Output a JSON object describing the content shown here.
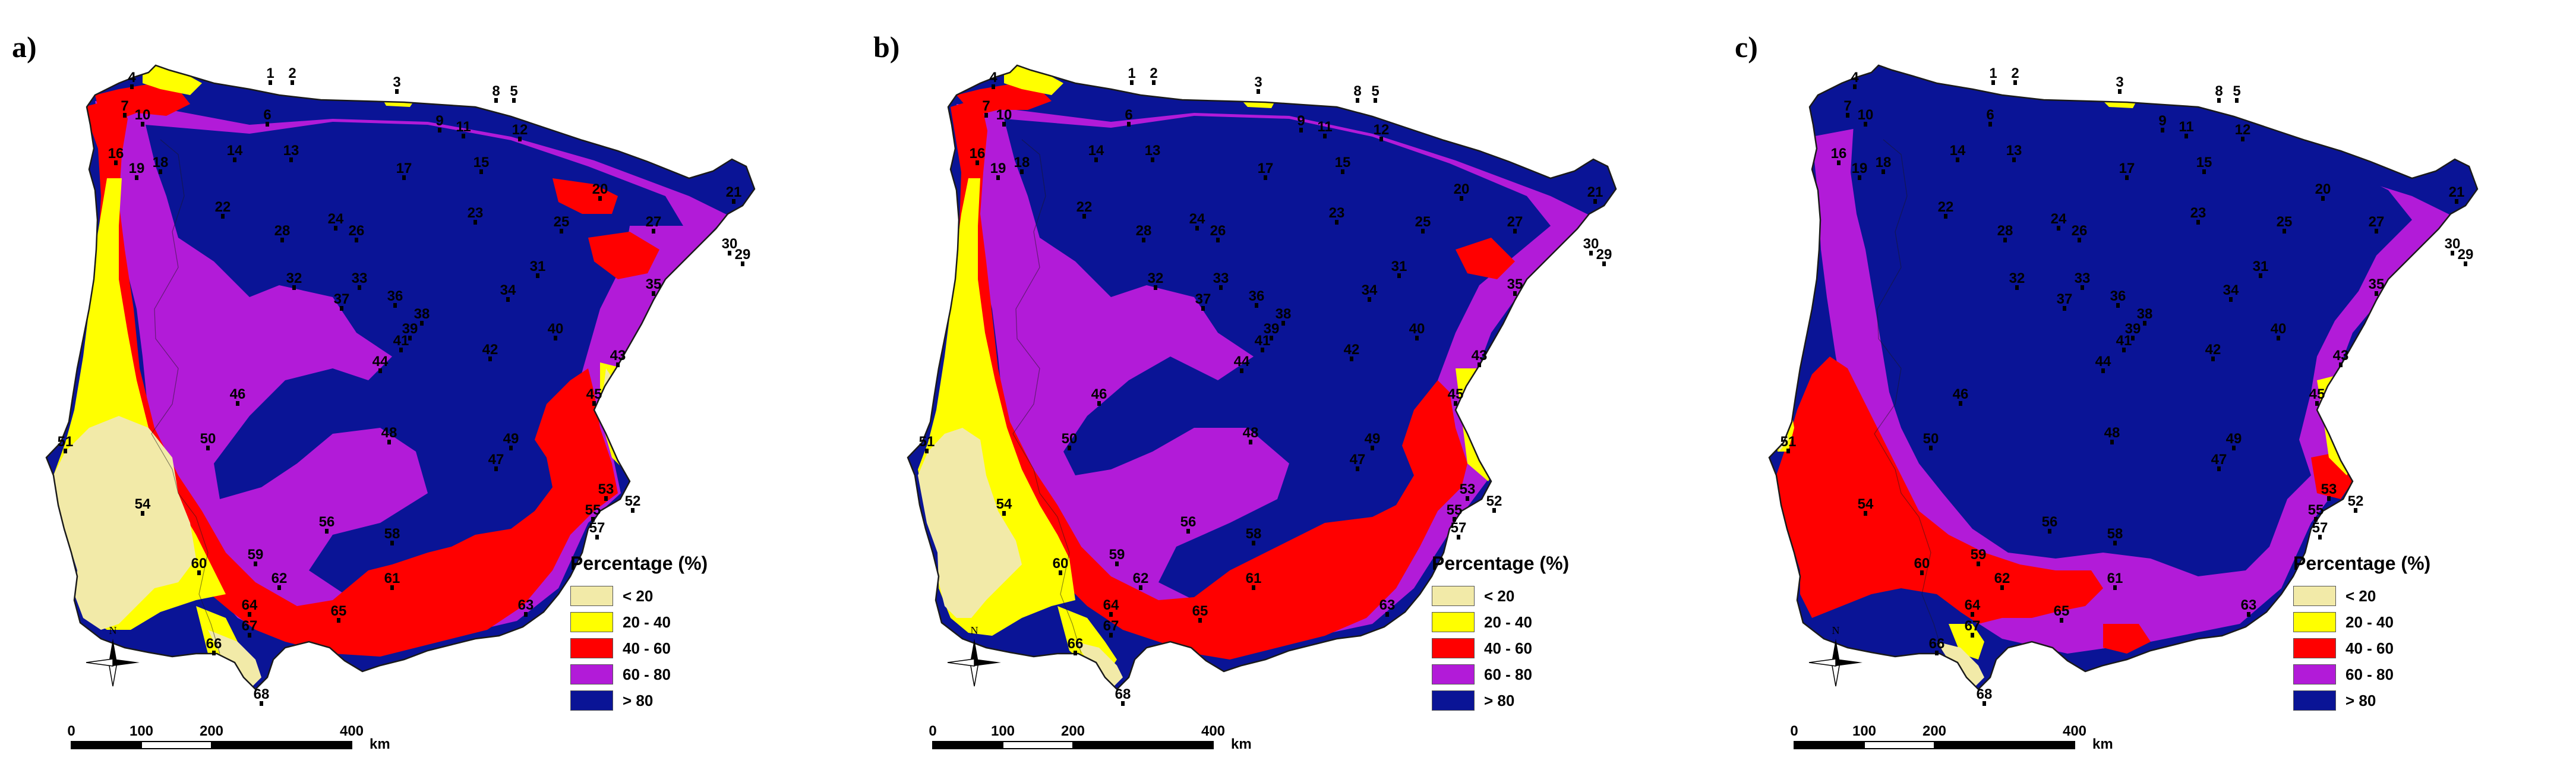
{
  "panels": [
    {
      "id": "a",
      "label": "a)"
    },
    {
      "id": "b",
      "label": "b)"
    },
    {
      "id": "c",
      "label": "c)"
    }
  ],
  "legend": {
    "title": "Percentage (%)",
    "classes": [
      {
        "label": "< 20",
        "color": "#f2eaa8"
      },
      {
        "label": "20 - 40",
        "color": "#ffff00"
      },
      {
        "label": "40 - 60",
        "color": "#ff0000"
      },
      {
        "label": "60 - 80",
        "color": "#b21bd8"
      },
      {
        "label": "> 80",
        "color": "#0a1496"
      }
    ]
  },
  "scale_bar": {
    "ticks": [
      "0",
      "100",
      "200",
      "400"
    ],
    "unit": "km"
  },
  "north_arrow": {
    "label": "N"
  },
  "stations": [
    "1",
    "2",
    "3",
    "4",
    "5",
    "6",
    "7",
    "8",
    "9",
    "10",
    "11",
    "12",
    "13",
    "14",
    "15",
    "16",
    "17",
    "18",
    "19",
    "20",
    "21",
    "22",
    "23",
    "24",
    "25",
    "26",
    "27",
    "28",
    "29",
    "30",
    "31",
    "32",
    "33",
    "34",
    "35",
    "36",
    "37",
    "38",
    "39",
    "40",
    "41",
    "42",
    "43",
    "44",
    "45",
    "46",
    "47",
    "48",
    "49",
    "50",
    "51",
    "52",
    "53",
    "54",
    "55",
    "56",
    "57",
    "58",
    "59",
    "60",
    "61",
    "62",
    "63",
    "64",
    "65",
    "66",
    "67",
    "68"
  ],
  "colors": {
    "land_outline": "#1a1a1a",
    "station_marker": "#000000"
  }
}
